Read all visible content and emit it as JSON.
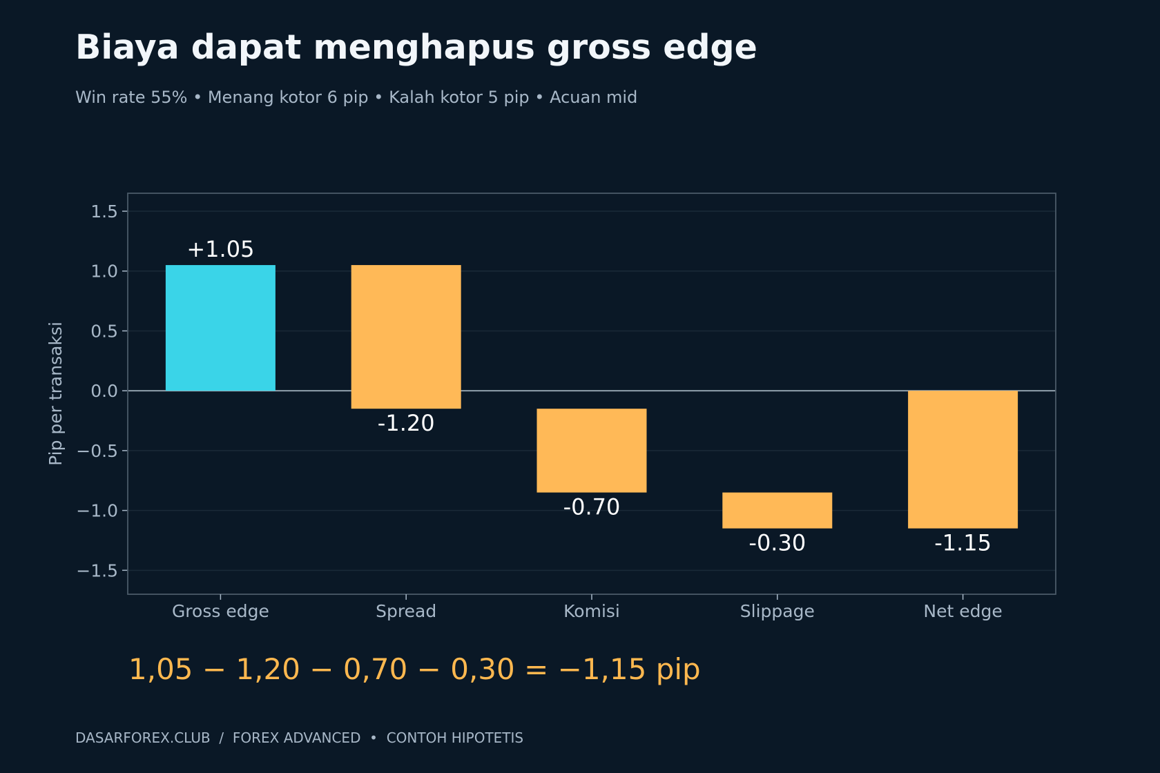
{
  "header": {
    "title": "Biaya dapat menghapus gross edge",
    "subtitle": "Win rate 55% • Menang kotor 6 pip • Kalah kotor 5 pip • Acuan mid"
  },
  "chart_data": {
    "type": "waterfall",
    "categories": [
      "Gross edge",
      "Spread",
      "Komisi",
      "Slippage",
      "Net edge"
    ],
    "steps": [
      {
        "category": "Gross edge",
        "start": 0,
        "end": 1.05,
        "label": "+1.05",
        "kind": "positive"
      },
      {
        "category": "Spread",
        "start": 1.05,
        "end": -0.15,
        "label": "-1.20",
        "kind": "cost"
      },
      {
        "category": "Komisi",
        "start": -0.15,
        "end": -0.85,
        "label": "-0.70",
        "kind": "cost"
      },
      {
        "category": "Slippage",
        "start": -0.85,
        "end": -1.15,
        "label": "-0.30",
        "kind": "cost"
      },
      {
        "category": "Net edge",
        "start": 0,
        "end": -1.15,
        "label": "-1.15",
        "kind": "cost"
      }
    ],
    "xlabel": "",
    "ylabel": "Pip per transaksi",
    "ylim": [
      -1.7,
      1.65
    ],
    "yticks": [
      1.5,
      1.0,
      0.5,
      0.0,
      -0.5,
      -1.0,
      -1.5
    ],
    "ytick_labels": [
      "1.5",
      "1.0",
      "0.5",
      "0.0",
      "−0.5",
      "−1.0",
      "−1.5"
    ],
    "grid": true,
    "colors": {
      "positive": "#3ad4e8",
      "cost": "#ffb957",
      "background": "#0a1826",
      "grid": "#1a2a38",
      "axis": "#4a5a68",
      "zero_line": "#9aaab6",
      "tick_text": "#a8b8c8",
      "label_text": "#ffffff"
    }
  },
  "formula": "1,05 − 1,20 − 0,70 − 0,30 = −1,15 pip",
  "footer": "DASARFOREX.CLUB  /  FOREX ADVANCED  •  CONTOH HIPOTETIS"
}
